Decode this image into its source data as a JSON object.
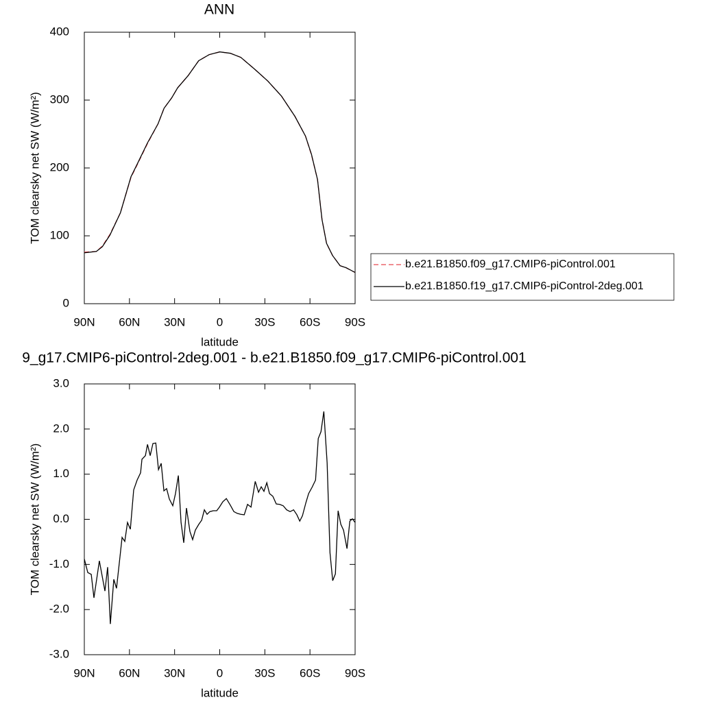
{
  "chart_data": [
    {
      "type": "line",
      "title": "ANN",
      "x_label": "latitude",
      "y_label": "TOM clearsky net SW (W/m²)",
      "x": [
        90,
        82,
        78,
        73,
        66,
        59,
        55,
        48,
        41,
        37,
        32,
        28,
        21,
        14,
        7,
        0,
        -7,
        -14,
        -23,
        -32,
        -41,
        -50,
        -57,
        -61,
        -65,
        -68,
        -71,
        -75,
        -80,
        -84,
        -90
      ],
      "series": [
        {
          "name": "b.e21.B1850.f09_g17.CMIP6-piControl.001",
          "color": "#e8474f",
          "dashed": true,
          "values": [
            76,
            77,
            85,
            102,
            134,
            186,
            204,
            236,
            265,
            288,
            303,
            318,
            336,
            358,
            367,
            371,
            369,
            363,
            346,
            328,
            306,
            276,
            247,
            219,
            183,
            124,
            89,
            71,
            56,
            53,
            46
          ]
        },
        {
          "name": "b.e21.B1850.f19_g17.CMIP6-piControl-2deg.001",
          "color": "#000000",
          "dashed": false,
          "values": [
            75,
            77,
            84,
            101,
            134,
            187,
            205,
            237,
            265,
            288,
            303,
            318,
            336,
            358,
            367,
            371,
            369,
            363,
            346,
            328,
            306,
            276,
            247,
            220,
            183,
            124,
            89,
            71,
            56,
            53,
            46
          ]
        }
      ],
      "xlim": [
        90,
        -90
      ],
      "xticks": [
        {
          "value": 90,
          "label": "90N"
        },
        {
          "value": 60,
          "label": "60N"
        },
        {
          "value": 30,
          "label": "30N"
        },
        0,
        {
          "value": -30,
          "label": "30S"
        },
        {
          "value": -60,
          "label": "60S"
        },
        {
          "value": -90,
          "label": "90S"
        }
      ],
      "ylim": [
        0,
        400
      ],
      "yticks": [
        0,
        100,
        200,
        300,
        400
      ]
    },
    {
      "type": "line",
      "title": "9_g17.CMIP6-piControl-2deg.001 - b.e21.B1850.f09_g17.CMIP6-piControl.001",
      "x_label": "latitude",
      "y_label": "TOM clearsky net SW (W/m²)",
      "x": [
        90,
        87.7,
        85.4,
        83.6,
        80.0,
        76.3,
        74.5,
        72.7,
        70.4,
        68.6,
        66.3,
        64.9,
        63.1,
        61.3,
        59.4,
        57.2,
        54.9,
        52.6,
        51.7,
        49.4,
        48.0,
        46.2,
        44.4,
        42.5,
        40.7,
        38.9,
        37.1,
        35.3,
        33.5,
        31.2,
        29.4,
        27.5,
        25.7,
        23.9,
        22.1,
        19.8,
        18.0,
        16.2,
        13.9,
        12.0,
        10.2,
        8.4,
        6.6,
        4.3,
        2.0,
        0.2,
        -2.1,
        -4.4,
        -7.1,
        -9.4,
        -11.7,
        -14.0,
        -16.3,
        -18.5,
        -20.8,
        -23.6,
        -25.8,
        -27.6,
        -29.4,
        -31.3,
        -33.1,
        -35.3,
        -37.6,
        -39.9,
        -42.2,
        -44.5,
        -46.8,
        -49.1,
        -51.3,
        -53.2,
        -55.0,
        -57.3,
        -59.1,
        -61.4,
        -63.7,
        -65.5,
        -67.3,
        -69.2,
        -71.4,
        -73.3,
        -75.1,
        -76.9,
        -78.7,
        -80.5,
        -82.3,
        -84.6,
        -86.5,
        -88.2,
        -90
      ],
      "values": [
        -0.88,
        -1.18,
        -1.22,
        -1.74,
        -0.92,
        -1.59,
        -1.06,
        -2.32,
        -1.33,
        -1.53,
        -0.83,
        -0.4,
        -0.49,
        -0.07,
        -0.22,
        0.65,
        0.87,
        1.03,
        1.33,
        1.41,
        1.66,
        1.41,
        1.68,
        1.69,
        1.1,
        1.24,
        0.63,
        0.68,
        0.45,
        0.3,
        0.57,
        0.97,
        -0.07,
        -0.52,
        0.25,
        -0.27,
        -0.45,
        -0.24,
        -0.11,
        -0.02,
        0.21,
        0.11,
        0.17,
        0.19,
        0.19,
        0.27,
        0.39,
        0.46,
        0.31,
        0.17,
        0.13,
        0.11,
        0.1,
        0.33,
        0.27,
        0.84,
        0.6,
        0.72,
        0.62,
        0.81,
        0.57,
        0.51,
        0.34,
        0.33,
        0.3,
        0.21,
        0.17,
        0.21,
        0.1,
        -0.04,
        0.08,
        0.37,
        0.57,
        0.71,
        0.87,
        1.79,
        1.94,
        2.39,
        1.25,
        -0.74,
        -1.36,
        -1.21,
        0.19,
        -0.11,
        -0.24,
        -0.65,
        -0.04,
        0.01,
        -0.07
      ],
      "color": "#000000",
      "xlim": [
        90,
        -90
      ],
      "xticks": [
        {
          "value": 90,
          "label": "90N"
        },
        {
          "value": 60,
          "label": "60N"
        },
        {
          "value": 30,
          "label": "30N"
        },
        0,
        {
          "value": -30,
          "label": "30S"
        },
        {
          "value": -60,
          "label": "60S"
        },
        {
          "value": -90,
          "label": "90S"
        }
      ],
      "ylim": [
        -3,
        3
      ],
      "yticks": [
        {
          "value": -3,
          "label": "-3.0"
        },
        {
          "value": -2,
          "label": "-2.0"
        },
        {
          "value": -1,
          "label": "-1.0"
        },
        {
          "value": 0,
          "label": "0.0"
        },
        {
          "value": 1,
          "label": "1.0"
        },
        {
          "value": 2,
          "label": "2.0"
        },
        {
          "value": 3,
          "label": "3.0"
        }
      ]
    }
  ]
}
